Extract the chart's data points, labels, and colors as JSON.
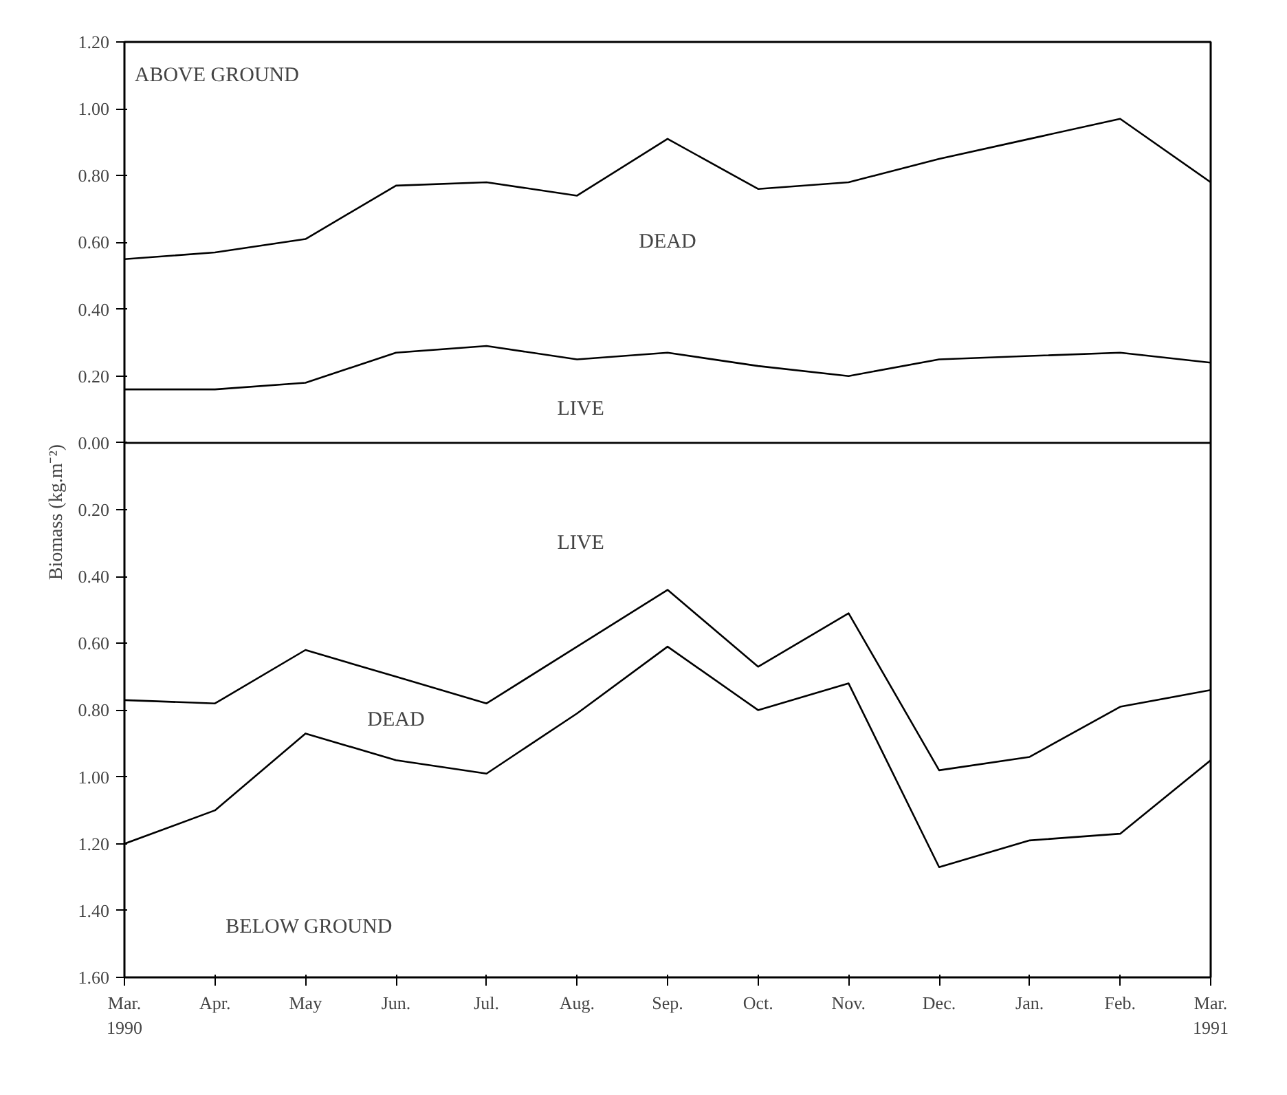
{
  "chart_data": {
    "type": "line",
    "ylabel": "Biomass  (kg.m⁻²)",
    "categories": [
      "Mar.\n1990",
      "Apr.",
      "May",
      "Jun.",
      "Jul.",
      "Aug.",
      "Sep.",
      "Oct.",
      "Nov.",
      "Dec.",
      "Jan.",
      "Feb.",
      "Mar.\n1991"
    ],
    "series": [
      {
        "color": "#000000",
        "values": [
          0.55,
          0.57,
          0.61,
          0.77,
          0.78,
          0.74,
          0.91,
          0.76,
          0.78,
          0.85,
          0.91,
          0.97,
          0.78
        ]
      },
      {
        "color": "#000000",
        "values": [
          0.16,
          0.16,
          0.18,
          0.27,
          0.29,
          0.25,
          0.27,
          0.23,
          0.2,
          0.25,
          0.26,
          0.27,
          0.24
        ]
      },
      {
        "color": "#000000",
        "values": [
          -0.77,
          -0.78,
          -0.62,
          -0.7,
          -0.78,
          -0.61,
          -0.44,
          -0.67,
          -0.51,
          -0.98,
          -0.94,
          -0.79,
          -0.74
        ]
      },
      {
        "color": "#000000",
        "values": [
          -1.2,
          -1.1,
          -0.87,
          -0.95,
          -0.99,
          -0.81,
          -0.61,
          -0.8,
          -0.72,
          -1.27,
          -1.19,
          -1.17,
          -0.95
        ]
      }
    ],
    "ref_lines": [
      {
        "axis": "y",
        "value": 0,
        "color": "#000000",
        "line_style": "solid"
      }
    ],
    "ylim": [
      -1.6,
      1.2
    ],
    "yticks": [
      {
        "value": -1.6,
        "label": "1.60"
      },
      {
        "value": -1.4,
        "label": "1.40"
      },
      {
        "value": -1.2,
        "label": "1.20"
      },
      {
        "value": -1.0,
        "label": "1.00"
      },
      {
        "value": -0.8,
        "label": "0.80"
      },
      {
        "value": -0.6,
        "label": "0.60"
      },
      {
        "value": -0.4,
        "label": "0.40"
      },
      {
        "value": -0.2,
        "label": "0.20"
      },
      {
        "value": 0,
        "label": "0.00"
      },
      {
        "value": 0.2,
        "label": "0.20"
      },
      {
        "value": 0.4,
        "label": "0.40"
      },
      {
        "value": 0.6,
        "label": "0.60"
      },
      {
        "value": 0.8,
        "label": "0.80"
      },
      {
        "value": 1.0,
        "label": "1.00"
      },
      {
        "value": 1.2,
        "label": "1.20"
      }
    ],
    "annotations": [
      "ABOVE GROUND",
      "DEAD",
      "LIVE",
      "LIVE",
      "DEAD",
      "BELOW GROUND"
    ],
    "grid": false,
    "marker": "none",
    "line_style": "solid"
  }
}
